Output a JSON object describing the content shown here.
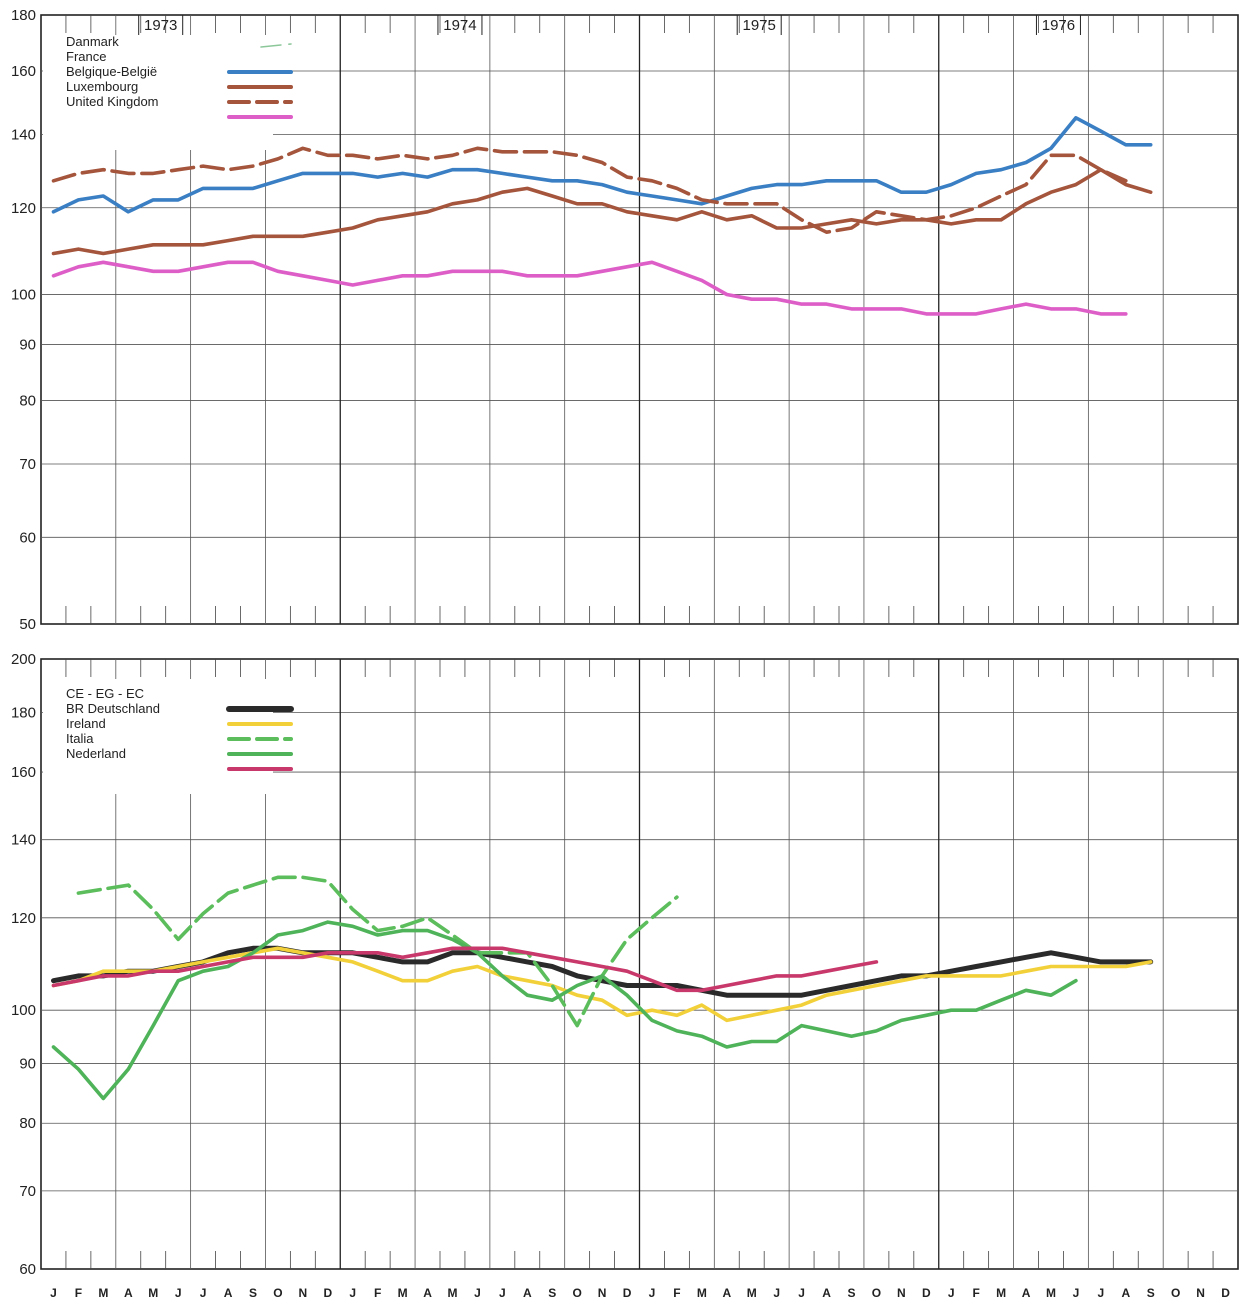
{
  "chart_data": [
    {
      "type": "line",
      "title": "",
      "xlabel": "",
      "ylabel": "",
      "y_scale": "log",
      "ylim": [
        50,
        180
      ],
      "y_ticks": [
        50,
        60,
        70,
        80,
        90,
        100,
        120,
        140,
        160,
        180
      ],
      "x_range": [
        "1973-01",
        "1976-12"
      ],
      "year_labels": [
        "1973",
        "1974",
        "1975",
        "1976"
      ],
      "grid": true,
      "legend_position": "top-left",
      "colors": {
        "Danmark": "#8cc79a",
        "France": "#3a7fc3",
        "Belgique-België": "#a4553c",
        "Luxembourg": "#a4553c",
        "United Kingdom": "#de5ec8"
      },
      "series": [
        {
          "name": "Danmark",
          "style": "dashed",
          "values": []
        },
        {
          "name": "France",
          "style": "solid",
          "x_start": "1973-01",
          "values": [
            119,
            122,
            123,
            119,
            122,
            122,
            125,
            125,
            125,
            127,
            129,
            129,
            129,
            128,
            129,
            128,
            130,
            130,
            129,
            128,
            127,
            127,
            126,
            124,
            123,
            122,
            121,
            123,
            125,
            126,
            126,
            127,
            127,
            127,
            124,
            124,
            126,
            129,
            130,
            132,
            136,
            145,
            141,
            137,
            137
          ]
        },
        {
          "name": "Belgique-België",
          "style": "solid",
          "x_start": "1973-01",
          "values": [
            109,
            110,
            109,
            110,
            111,
            111,
            111,
            112,
            113,
            113,
            113,
            114,
            115,
            117,
            118,
            119,
            121,
            122,
            124,
            125,
            123,
            121,
            121,
            119,
            118,
            117,
            119,
            117,
            118,
            115,
            115,
            116,
            117,
            116,
            117,
            117,
            116,
            117,
            117,
            121,
            124,
            126,
            130,
            126,
            124
          ]
        },
        {
          "name": "Luxembourg",
          "style": "dashed",
          "x_start": "1973-01",
          "values": [
            127,
            129,
            130,
            129,
            129,
            130,
            131,
            130,
            131,
            133,
            136,
            134,
            134,
            133,
            134,
            133,
            134,
            136,
            135,
            135,
            135,
            134,
            132,
            128,
            127,
            125,
            122,
            121,
            121,
            121,
            117,
            114,
            115,
            119,
            118,
            117,
            118,
            120,
            123,
            126,
            134,
            134,
            130,
            127,
            null
          ]
        },
        {
          "name": "United Kingdom",
          "style": "solid",
          "x_start": "1973-01",
          "values": [
            104,
            106,
            107,
            106,
            105,
            105,
            106,
            107,
            107,
            105,
            104,
            103,
            102,
            103,
            104,
            104,
            105,
            105,
            105,
            104,
            104,
            104,
            105,
            106,
            107,
            105,
            103,
            100,
            99,
            99,
            98,
            98,
            97,
            97,
            97,
            96,
            96,
            96,
            97,
            98,
            97,
            97,
            96,
            96,
            null
          ]
        }
      ]
    },
    {
      "type": "line",
      "title": "",
      "xlabel": "",
      "ylabel": "",
      "y_scale": "log",
      "ylim": [
        60,
        200
      ],
      "y_ticks": [
        60,
        70,
        80,
        90,
        100,
        120,
        140,
        160,
        180,
        200
      ],
      "x_range": [
        "1973-01",
        "1976-12"
      ],
      "month_labels": [
        "J",
        "F",
        "M",
        "A",
        "M",
        "J",
        "J",
        "A",
        "S",
        "O",
        "N",
        "D",
        "J",
        "F",
        "M",
        "A",
        "M",
        "J",
        "J",
        "A",
        "S",
        "O",
        "N",
        "D",
        "J",
        "F",
        "M",
        "A",
        "M",
        "J",
        "J",
        "A",
        "S",
        "O",
        "N",
        "D",
        "J",
        "F",
        "M",
        "A",
        "M",
        "J",
        "J",
        "A",
        "S",
        "O",
        "N",
        "D"
      ],
      "grid": true,
      "legend_position": "top-left",
      "colors": {
        "CE - EG - EC": "#2a2a2a",
        "BR Deutschland": "#f2d03a",
        "Ireland": "#5bbd5b",
        "Italia": "#4fb35a",
        "Nederland": "#c8386a"
      },
      "series": [
        {
          "name": "CE - EG - EC",
          "style": "solid",
          "x_start": "1973-01",
          "values": [
            106,
            107,
            107,
            108,
            108,
            109,
            110,
            112,
            113,
            113,
            112,
            112,
            112,
            111,
            110,
            110,
            112,
            112,
            111,
            110,
            109,
            107,
            106,
            105,
            105,
            105,
            104,
            103,
            103,
            103,
            103,
            104,
            105,
            106,
            107,
            107,
            108,
            109,
            110,
            111,
            112,
            111,
            110,
            110,
            110
          ]
        },
        {
          "name": "BR Deutschland",
          "style": "solid",
          "x_start": "1973-01",
          "values": [
            105,
            106,
            108,
            108,
            108,
            109,
            110,
            111,
            112,
            113,
            112,
            111,
            110,
            108,
            106,
            106,
            108,
            109,
            107,
            106,
            105,
            103,
            102,
            99,
            100,
            99,
            101,
            98,
            99,
            100,
            101,
            103,
            104,
            105,
            106,
            107,
            107,
            107,
            107,
            108,
            109,
            109,
            109,
            109,
            110
          ]
        },
        {
          "name": "Ireland",
          "style": "dashed",
          "x_start": "1973-01",
          "values": [
            null,
            126,
            127,
            128,
            122,
            115,
            121,
            126,
            128,
            130,
            130,
            129,
            122,
            117,
            118,
            120,
            116,
            112,
            112,
            112,
            105,
            97,
            107,
            115,
            120,
            125,
            null,
            null,
            null,
            null,
            null,
            null,
            null,
            null,
            null,
            null,
            null,
            null,
            null,
            null,
            null,
            null,
            null,
            null,
            null
          ]
        },
        {
          "name": "Italia",
          "style": "solid",
          "x_start": "1973-01",
          "values": [
            93,
            89,
            84,
            89,
            97,
            106,
            108,
            109,
            112,
            116,
            117,
            119,
            118,
            116,
            117,
            117,
            115,
            112,
            107,
            103,
            102,
            105,
            107,
            103,
            98,
            96,
            95,
            93,
            94,
            94,
            97,
            96,
            95,
            96,
            98,
            99,
            100,
            100,
            102,
            104,
            103,
            106,
            null,
            null,
            null
          ]
        },
        {
          "name": "Nederland",
          "style": "solid",
          "x_start": "1973-01",
          "values": [
            105,
            106,
            107,
            107,
            108,
            108,
            109,
            110,
            111,
            111,
            111,
            112,
            112,
            112,
            111,
            112,
            113,
            113,
            113,
            112,
            111,
            110,
            109,
            108,
            106,
            104,
            104,
            105,
            106,
            107,
            107,
            108,
            109,
            110,
            null,
            null,
            null,
            null,
            null,
            null,
            null,
            null,
            null,
            null,
            null
          ]
        }
      ]
    }
  ]
}
